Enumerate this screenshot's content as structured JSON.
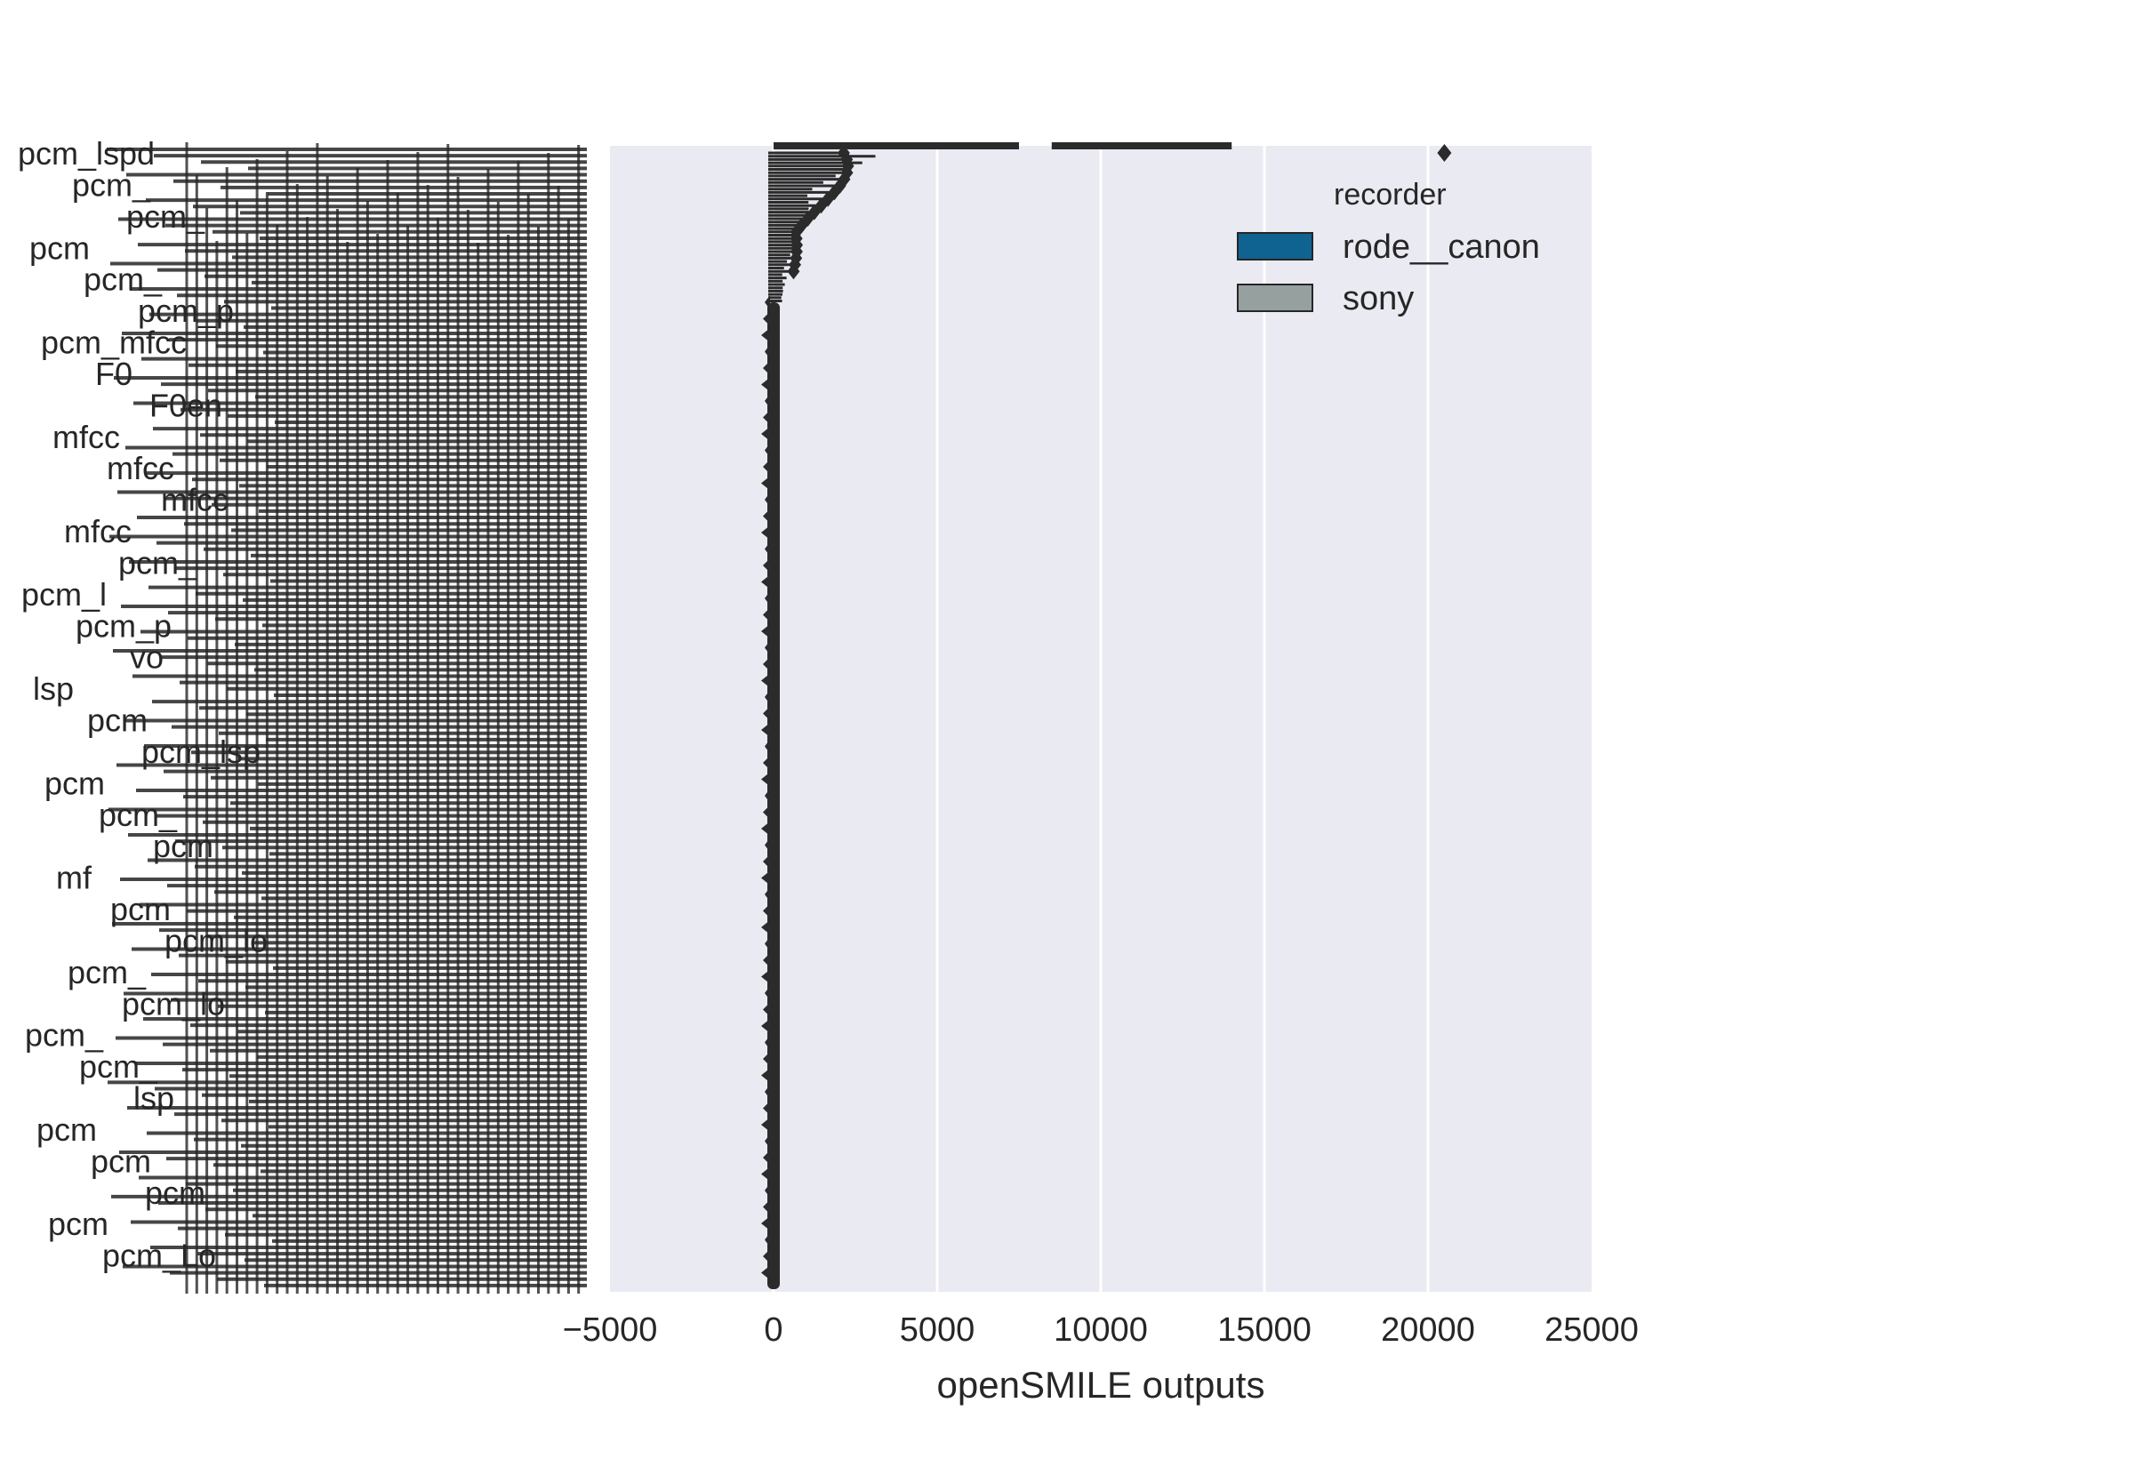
{
  "chart_data": {
    "type": "box",
    "orientation": "horizontal",
    "title": "",
    "xlabel": "openSMILE outputs",
    "ylabel": "",
    "xlim": [
      -5000,
      25000
    ],
    "xticks": [
      -5000,
      0,
      5000,
      10000,
      15000,
      20000,
      25000
    ],
    "xtick_labels": [
      "−5000",
      "0",
      "5000",
      "10000",
      "15000",
      "20000",
      "25000"
    ],
    "grid": true,
    "legend": {
      "title": "recorder",
      "placement": "upper-right",
      "entries": [
        {
          "label": "rode__canon",
          "color": "#0f6391"
        },
        {
          "label": "sony",
          "color": "#96a09f"
        }
      ]
    },
    "series": [
      {
        "name": "rode__canon",
        "color": "#0f6391"
      },
      {
        "name": "sony",
        "color": "#96a09f"
      }
    ],
    "top_category_boxes": {
      "rode__canon": {
        "q1": 0,
        "q3": 7500,
        "max": 7500
      },
      "sony": {
        "q1": 8500,
        "q3": 14000,
        "max": 14000
      },
      "outlier": 20500
    },
    "visible_category_labels": [
      "pcm_lspd",
      "pcm_",
      "pcm_",
      "pcm",
      "pcm_",
      "pcm_p",
      "pcm_mfcc",
      "F0",
      "F0en",
      "mfcc",
      "mfcc",
      "mfcc",
      "mfcc",
      "pcm_",
      "pcm_l",
      "pcm_p",
      "vo",
      "lsp",
      "pcm",
      "pcm_lsp",
      "pcm",
      "pcm_",
      "pcm",
      "mf",
      "pcm",
      "pcm_lo",
      "pcm_",
      "pcm_lo",
      "pcm_",
      "pcm_",
      "lsp",
      "pcm",
      "pcm",
      "pcm",
      "pcm",
      "pcm_Lo"
    ]
  }
}
